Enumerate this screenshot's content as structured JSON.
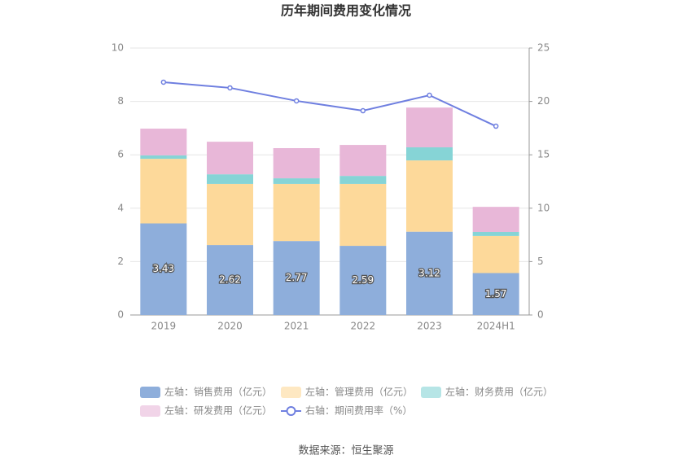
{
  "chart_data": {
    "type": "bar_line",
    "title": "历年期间费用变化情况",
    "categories": [
      "2019",
      "2020",
      "2021",
      "2022",
      "2023",
      "2024H1"
    ],
    "series": [
      {
        "name": "左轴：销售费用（亿元）",
        "color": "#8eaedb",
        "values": [
          3.43,
          2.62,
          2.77,
          2.59,
          3.12,
          1.57
        ]
      },
      {
        "name": "左轴：管理费用（亿元）",
        "color": "#fdd99a",
        "values": [
          2.42,
          2.29,
          2.14,
          2.32,
          2.67,
          1.39
        ]
      },
      {
        "name": "左轴：财务费用（亿元）",
        "color": "#86d4d6",
        "values": [
          0.13,
          0.36,
          0.21,
          0.3,
          0.49,
          0.15
        ]
      },
      {
        "name": "左轴：研发费用（亿元）",
        "color": "#e8b7d8",
        "values": [
          1.0,
          1.22,
          1.13,
          1.16,
          1.49,
          0.94
        ]
      },
      {
        "name": "右轴：期间费用率（%）",
        "color": "#6f7fe0",
        "axis": "y2",
        "values": [
          21.8,
          21.27,
          20.05,
          19.13,
          20.58,
          17.68
        ]
      }
    ],
    "ylim": [
      0,
      10
    ],
    "yticks": [
      0,
      2,
      4,
      6,
      8,
      10
    ],
    "y2lim": [
      0,
      25
    ],
    "y2ticks": [
      0,
      5,
      10,
      15,
      20,
      25
    ],
    "grid": true,
    "source": "数据来源：恒生聚源"
  }
}
